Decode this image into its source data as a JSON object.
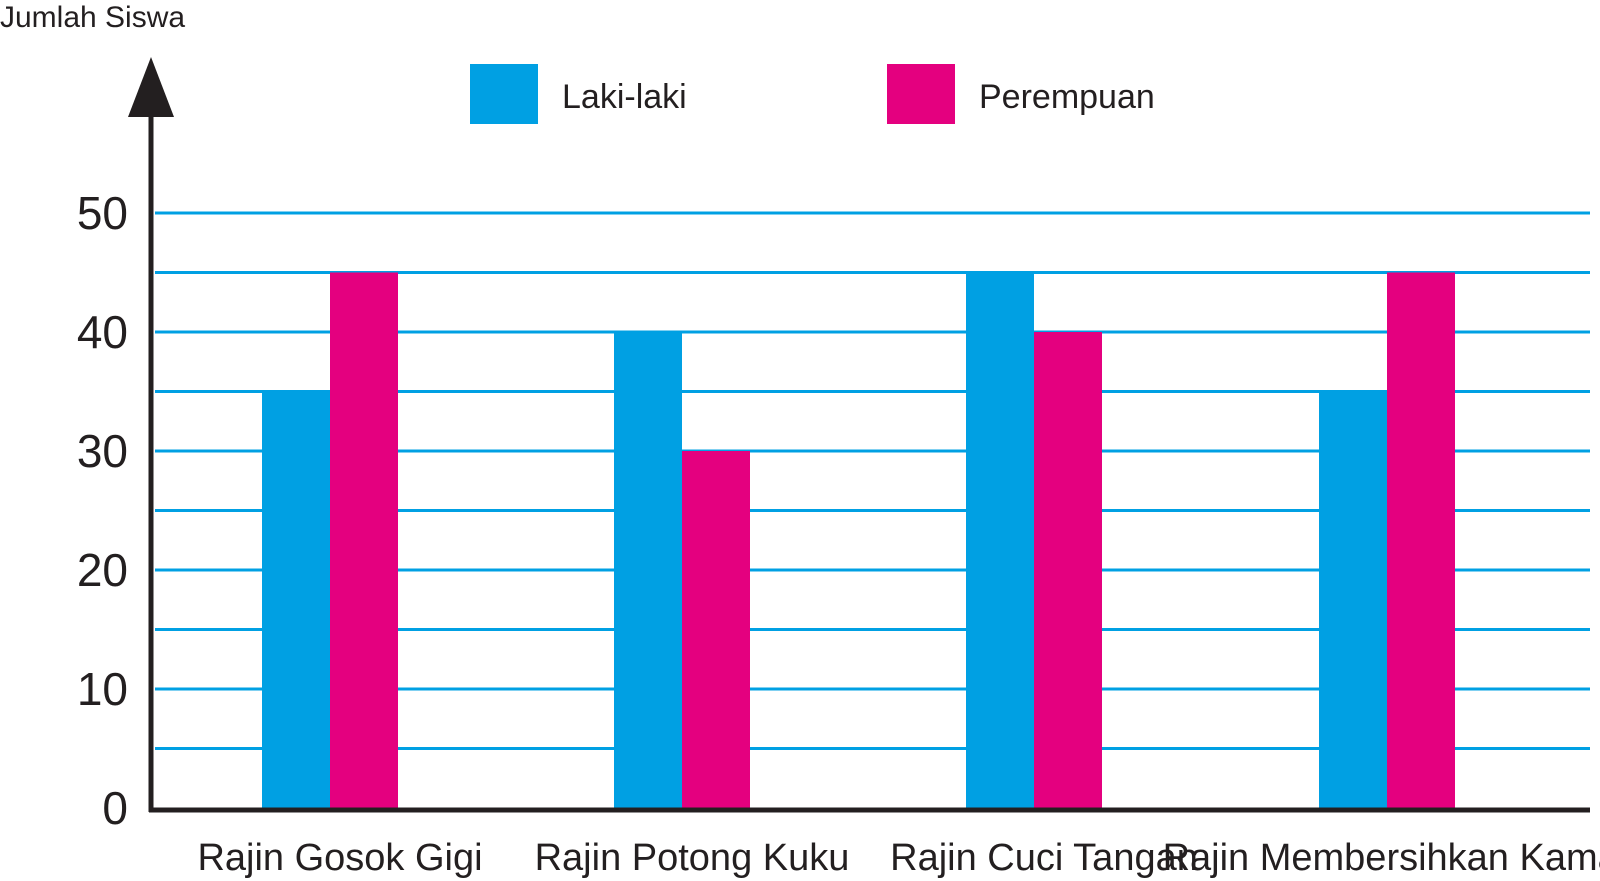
{
  "chart_data": {
    "type": "bar",
    "ylabel": "Jumlah Siswa",
    "xlabel": "",
    "title": "",
    "categories": [
      "Rajin Gosok Gigi",
      "Rajin Potong Kuku",
      "Rajin Cuci Tangan",
      "Rajin Membersihkan Kamar"
    ],
    "series": [
      {
        "name": "Laki-laki",
        "color": "#00a0e3",
        "values": [
          35,
          40,
          45,
          35
        ]
      },
      {
        "name": "Perempuan",
        "color": "#e4007f",
        "values": [
          45,
          30,
          40,
          45
        ]
      }
    ],
    "ylim": [
      0,
      50
    ],
    "yticks": [
      0,
      10,
      20,
      30,
      40,
      50
    ],
    "grid_step": 5,
    "grid": true,
    "grid_color": "#00a0e3",
    "axis_color": "#231f20",
    "legend_position": "top"
  }
}
